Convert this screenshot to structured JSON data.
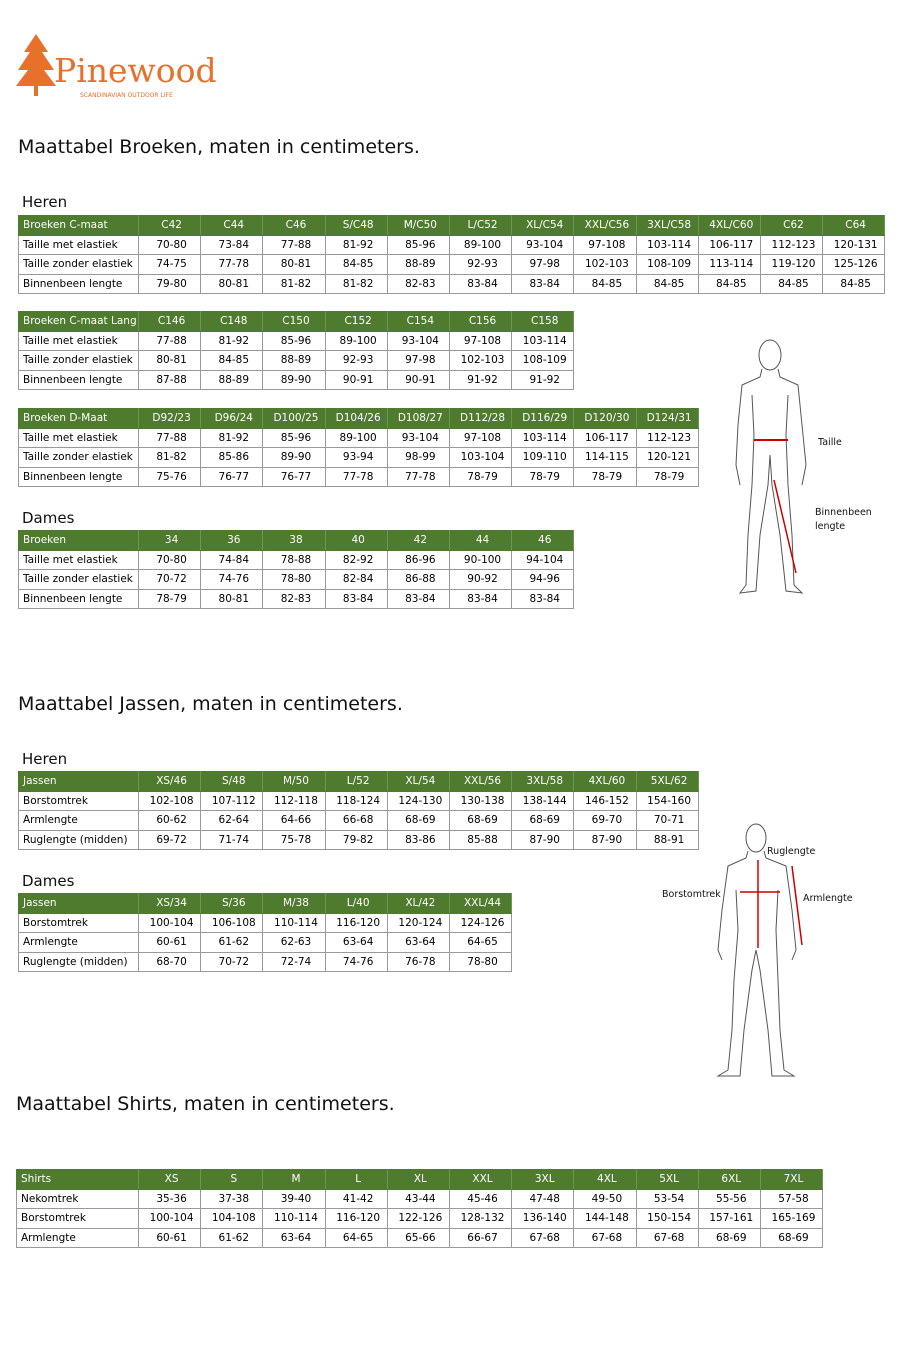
{
  "header": {
    "brand": "Pinewood",
    "tagline": "SCANDINAVIAN OUTDOOR LIFE"
  },
  "sections": [
    {
      "title": "Maattabel Broeken, maten in centimeters.",
      "blocks": [
        {
          "heading": "Heren",
          "tables": [
            {
              "header": [
                "Broeken C-maat",
                "C42",
                "C44",
                "C46",
                "S/C48",
                "M/C50",
                "L/C52",
                "XL/C54",
                "XXL/C56",
                "3XL/C58",
                "4XL/C60",
                "C62",
                "C64"
              ],
              "rows": [
                [
                  "Taille met elastiek",
                  "70-80",
                  "73-84",
                  "77-88",
                  "81-92",
                  "85-96",
                  "89-100",
                  "93-104",
                  "97-108",
                  "103-114",
                  "106-117",
                  "112-123",
                  "120-131"
                ],
                [
                  "Taille zonder elastiek",
                  "74-75",
                  "77-78",
                  "80-81",
                  "84-85",
                  "88-89",
                  "92-93",
                  "97-98",
                  "102-103",
                  "108-109",
                  "113-114",
                  "119-120",
                  "125-126"
                ],
                [
                  "Binnenbeen lengte",
                  "79-80",
                  "80-81",
                  "81-82",
                  "81-82",
                  "82-83",
                  "83-84",
                  "83-84",
                  "84-85",
                  "84-85",
                  "84-85",
                  "84-85",
                  "84-85"
                ]
              ]
            },
            {
              "header": [
                "Broeken C-maat Lang",
                "C146",
                "C148",
                "C150",
                "C152",
                "C154",
                "C156",
                "C158"
              ],
              "rows": [
                [
                  "Taille met elastiek",
                  "77-88",
                  "81-92",
                  "85-96",
                  "89-100",
                  "93-104",
                  "97-108",
                  "103-114"
                ],
                [
                  "Taille zonder elastiek",
                  "80-81",
                  "84-85",
                  "88-89",
                  "92-93",
                  "97-98",
                  "102-103",
                  "108-109"
                ],
                [
                  "Binnenbeen lengte",
                  "87-88",
                  "88-89",
                  "89-90",
                  "90-91",
                  "90-91",
                  "91-92",
                  "91-92"
                ]
              ]
            },
            {
              "header": [
                "Broeken D-Maat",
                "D92/23",
                "D96/24",
                "D100/25",
                "D104/26",
                "D108/27",
                "D112/28",
                "D116/29",
                "D120/30",
                "D124/31"
              ],
              "rows": [
                [
                  "Taille met elastiek",
                  "77-88",
                  "81-92",
                  "85-96",
                  "89-100",
                  "93-104",
                  "97-108",
                  "103-114",
                  "106-117",
                  "112-123"
                ],
                [
                  "Taille zonder elastiek",
                  "81-82",
                  "85-86",
                  "89-90",
                  "93-94",
                  "98-99",
                  "103-104",
                  "109-110",
                  "114-115",
                  "120-121"
                ],
                [
                  "Binnenbeen lengte",
                  "75-76",
                  "76-77",
                  "76-77",
                  "77-78",
                  "77-78",
                  "78-79",
                  "78-79",
                  "78-79",
                  "78-79"
                ]
              ]
            }
          ]
        },
        {
          "heading": "Dames",
          "tables": [
            {
              "header": [
                "Broeken",
                "34",
                "36",
                "38",
                "40",
                "42",
                "44",
                "46"
              ],
              "rows": [
                [
                  "Taille met elastiek",
                  "70-80",
                  "74-84",
                  "78-88",
                  "82-92",
                  "86-96",
                  "90-100",
                  "94-104"
                ],
                [
                  "Taille zonder elastiek",
                  "70-72",
                  "74-76",
                  "78-80",
                  "82-84",
                  "86-88",
                  "90-92",
                  "94-96"
                ],
                [
                  "Binnenbeen lengte",
                  "78-79",
                  "80-81",
                  "82-83",
                  "83-84",
                  "83-84",
                  "83-84",
                  "83-84"
                ]
              ]
            }
          ]
        }
      ],
      "figure_labels": [
        "Taille",
        "Binnenbeen lengte"
      ]
    },
    {
      "title": "Maattabel Jassen, maten in centimeters.",
      "blocks": [
        {
          "heading": "Heren",
          "tables": [
            {
              "header": [
                "Jassen",
                "XS/46",
                "S/48",
                "M/50",
                "L/52",
                "XL/54",
                "XXL/56",
                "3XL/58",
                "4XL/60",
                "5XL/62"
              ],
              "rows": [
                [
                  "Borstomtrek",
                  "102-108",
                  "107-112",
                  "112-118",
                  "118-124",
                  "124-130",
                  "130-138",
                  "138-144",
                  "146-152",
                  "154-160"
                ],
                [
                  "Armlengte",
                  "60-62",
                  "62-64",
                  "64-66",
                  "66-68",
                  "68-69",
                  "68-69",
                  "68-69",
                  "69-70",
                  "70-71"
                ],
                [
                  "Ruglengte (midden)",
                  "69-72",
                  "71-74",
                  "75-78",
                  "79-82",
                  "83-86",
                  "85-88",
                  "87-90",
                  "87-90",
                  "88-91"
                ]
              ]
            }
          ]
        },
        {
          "heading": "Dames",
          "tables": [
            {
              "header": [
                "Jassen",
                "XS/34",
                "S/36",
                "M/38",
                "L/40",
                "XL/42",
                "XXL/44"
              ],
              "rows": [
                [
                  "Borstomtrek",
                  "100-104",
                  "106-108",
                  "110-114",
                  "116-120",
                  "120-124",
                  "124-126"
                ],
                [
                  "Armlengte",
                  "60-61",
                  "61-62",
                  "62-63",
                  "63-64",
                  "63-64",
                  "64-65"
                ],
                [
                  "Ruglengte (midden)",
                  "68-70",
                  "70-72",
                  "72-74",
                  "74-76",
                  "76-78",
                  "78-80"
                ]
              ]
            }
          ]
        }
      ],
      "figure_labels": [
        "Ruglengte",
        "Borstomtrek",
        "Armlengte"
      ]
    },
    {
      "title": "Maattabel Shirts, maten in centimeters.",
      "blocks": [
        {
          "tables": [
            {
              "header": [
                "Shirts",
                "XS",
                "S",
                "M",
                "L",
                "XL",
                "XXL",
                "3XL",
                "4XL",
                "5XL",
                "6XL",
                "7XL"
              ],
              "rows": [
                [
                  "Nekomtrek",
                  "35-36",
                  "37-38",
                  "39-40",
                  "41-42",
                  "43-44",
                  "45-46",
                  "47-48",
                  "49-50",
                  "53-54",
                  "55-56",
                  "57-58"
                ],
                [
                  "Borstomtrek",
                  "100-104",
                  "104-108",
                  "110-114",
                  "116-120",
                  "122-126",
                  "128-132",
                  "136-140",
                  "144-148",
                  "150-154",
                  "157-161",
                  "165-169"
                ],
                [
                  "Armlengte",
                  "60-61",
                  "61-62",
                  "63-64",
                  "64-65",
                  "65-66",
                  "66-67",
                  "67-68",
                  "67-68",
                  "67-68",
                  "68-69",
                  "68-69"
                ]
              ]
            }
          ]
        }
      ]
    }
  ]
}
